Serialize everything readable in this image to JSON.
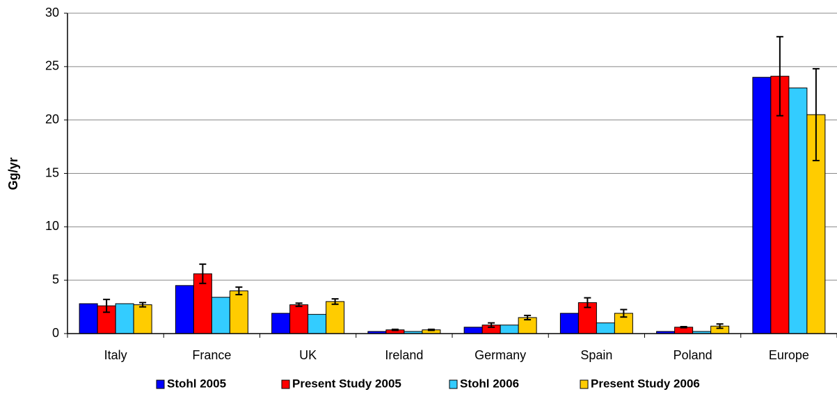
{
  "chart_data": {
    "type": "bar",
    "y_label": "Gg/yr",
    "categories": [
      "Italy",
      "France",
      "UK",
      "Ireland",
      "Germany",
      "Spain",
      "Poland",
      "Europe"
    ],
    "series": [
      {
        "name": "Stohl 2005",
        "color": "#0000ff",
        "values": [
          2.8,
          4.5,
          1.9,
          0.2,
          0.6,
          1.9,
          0.2,
          24.0
        ]
      },
      {
        "name": "Present Study 2005",
        "color": "#ff0000",
        "values": [
          2.6,
          5.6,
          2.7,
          0.35,
          0.8,
          2.9,
          0.6,
          24.1
        ],
        "errors": [
          0.6,
          0.9,
          0.15,
          0.05,
          0.2,
          0.45,
          0.05,
          3.7
        ]
      },
      {
        "name": "Stohl 2006",
        "color": "#33ccff",
        "values": [
          2.8,
          3.4,
          1.8,
          0.2,
          0.8,
          1.0,
          0.2,
          23.0
        ]
      },
      {
        "name": "Present Study 2006",
        "color": "#ffcc00",
        "values": [
          2.7,
          4.0,
          3.0,
          0.35,
          1.5,
          1.9,
          0.7,
          20.5
        ],
        "errors": [
          0.2,
          0.35,
          0.25,
          0.05,
          0.2,
          0.35,
          0.2,
          4.3
        ]
      }
    ],
    "ylim": [
      0,
      30
    ],
    "yticks": [
      0,
      5,
      10,
      15,
      20,
      25,
      30
    ],
    "grid": true
  }
}
